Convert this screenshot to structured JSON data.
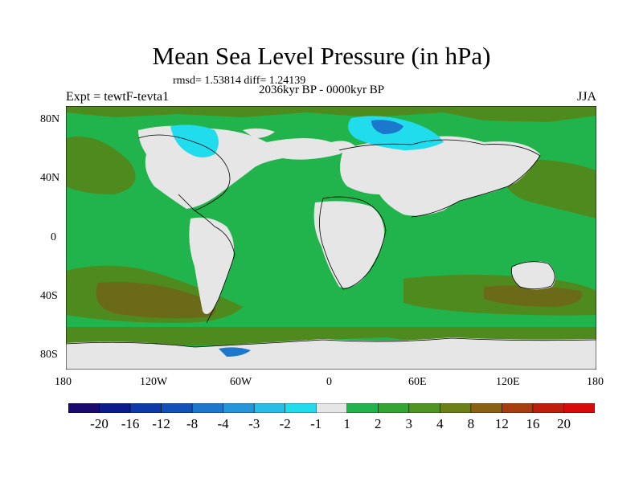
{
  "title": "Mean Sea Level Pressure (in hPa)",
  "stats": "rmsd= 1.53814 diff= 1.24139",
  "period": "2036kyr BP - 0000kyr BP",
  "experiment": "Expt = tewtF-tevta1",
  "season": "JJA",
  "map": {
    "lat_labels": [
      "80N",
      "40N",
      "0",
      "40S",
      "80S"
    ],
    "lon_labels": [
      "180",
      "120W",
      "60W",
      "0",
      "60E",
      "120E",
      "180"
    ]
  },
  "colorbar": {
    "labels": [
      "-20",
      "-16",
      "-12",
      "-8",
      "-4",
      "-3",
      "-2",
      "-1",
      "1",
      "2",
      "3",
      "4",
      "8",
      "12",
      "16",
      "20"
    ],
    "colors": [
      "#1a0a6e",
      "#0a1c8c",
      "#0d3aa8",
      "#1251b9",
      "#1c78cc",
      "#2296d8",
      "#27bde6",
      "#20dcec",
      "#e6e6e6",
      "#22b44c",
      "#33a532",
      "#4f9322",
      "#6b8017",
      "#8a6112",
      "#a73c0f",
      "#c01e0d",
      "#d80a0a"
    ]
  },
  "colors": {
    "land_neutral": "#e6e6e6",
    "ocean_positive": "#22b44c",
    "ocean_strong": "#4f8a1e",
    "brown": "#6b6a18",
    "negative": "#20dcec",
    "negative_strong": "#1c78cc"
  }
}
